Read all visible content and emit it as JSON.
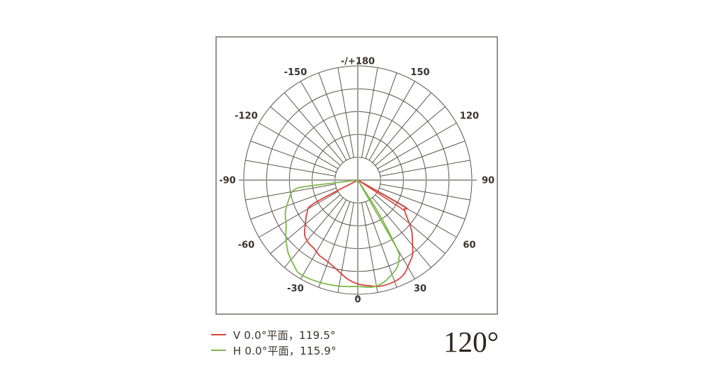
{
  "chart_data": {
    "type": "polar",
    "title": "120°",
    "polar_grid": {
      "outer_radius_px": 161,
      "rings": [
        0.2,
        0.4,
        0.6,
        0.8,
        1.0
      ],
      "spoke_step_deg": 10,
      "angle_labels": [
        {
          "angle": 180,
          "label": "-/+180"
        },
        {
          "angle": 150,
          "label": "150"
        },
        {
          "angle": 120,
          "label": "120"
        },
        {
          "angle": 90,
          "label": "90"
        },
        {
          "angle": 60,
          "label": "60"
        },
        {
          "angle": 30,
          "label": "30"
        },
        {
          "angle": 0,
          "label": "0"
        },
        {
          "angle": -30,
          "label": "-30"
        },
        {
          "angle": -60,
          "label": "-60"
        },
        {
          "angle": -90,
          "label": "-90"
        },
        {
          "angle": -120,
          "label": "-120"
        },
        {
          "angle": -150,
          "label": "-150"
        }
      ]
    },
    "series": [
      {
        "id": "v-plane",
        "label": "V 0.0°平面，119.5°",
        "plane": "V 0.0°",
        "beam_angle_deg": 119.5,
        "color": "#d8473d",
        "points": [
          [
            -62.5,
            0.005
          ],
          [
            -62,
            0.44
          ],
          [
            -57,
            0.53
          ],
          [
            -50,
            0.6
          ],
          [
            -44,
            0.67
          ],
          [
            -38,
            0.7
          ],
          [
            -33,
            0.71
          ],
          [
            -27,
            0.74
          ],
          [
            -22,
            0.755
          ],
          [
            -16,
            0.785
          ],
          [
            -12,
            0.815
          ],
          [
            -6,
            0.87
          ],
          [
            0,
            0.91
          ],
          [
            6,
            0.93
          ],
          [
            12,
            0.95
          ],
          [
            20,
            0.945
          ],
          [
            26,
            0.92
          ],
          [
            31,
            0.865
          ],
          [
            36,
            0.815
          ],
          [
            40,
            0.747
          ],
          [
            46,
            0.66
          ],
          [
            50,
            0.59
          ],
          [
            54,
            0.525
          ],
          [
            58,
            0.48
          ],
          [
            60.5,
            0.465
          ],
          [
            64.5,
            0.01
          ]
        ],
        "spike": [
          [
            57,
            0.5
          ],
          [
            62,
            0.01
          ]
        ]
      },
      {
        "id": "h-plane",
        "label": "H 0.0°平面，115.9°",
        "plane": "H 0.0°",
        "beam_angle_deg": 115.9,
        "color": "#7eb74a",
        "points": [
          [
            -83,
            0.005
          ],
          [
            -83,
            0.455
          ],
          [
            -81,
            0.57
          ],
          [
            -74,
            0.63
          ],
          [
            -66,
            0.695
          ],
          [
            -58,
            0.74
          ],
          [
            -52,
            0.8
          ],
          [
            -44,
            0.88
          ],
          [
            -36,
            0.94
          ],
          [
            -32,
            0.965
          ],
          [
            -24,
            0.96
          ],
          [
            -16,
            0.95
          ],
          [
            -8,
            0.94
          ],
          [
            0,
            0.932
          ],
          [
            8,
            0.945
          ],
          [
            14,
            0.925
          ],
          [
            20,
            0.878
          ],
          [
            25,
            0.83
          ],
          [
            28,
            0.77
          ],
          [
            29.5,
            0.72
          ],
          [
            31.5,
            0.45
          ],
          [
            33,
            0.22
          ],
          [
            33.8,
            0.01
          ]
        ],
        "spike": [
          [
            29.8,
            0.73
          ],
          [
            35.5,
            0.01
          ]
        ]
      }
    ],
    "layout": {
      "grid_color": "#5d5551",
      "axis_color": "#a3a09e",
      "border_color": "#6c6561",
      "label_color": "#3a332e"
    }
  }
}
